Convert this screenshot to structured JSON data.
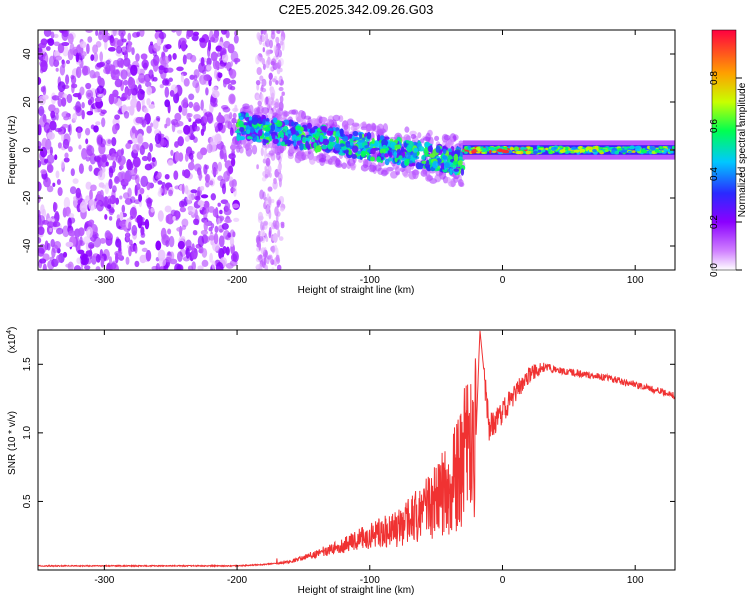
{
  "figure_title": "C2E5.2025.342.09.26.G03",
  "chart_data": [
    {
      "type": "heatmap",
      "xlabel": "Height of straight line (km)",
      "ylabel": "Frequency (Hz)",
      "xlim": [
        -350,
        130
      ],
      "ylim": [
        -50,
        50
      ],
      "xticks": [
        -300,
        -200,
        -100,
        0,
        100
      ],
      "yticks": [
        -40,
        -20,
        0,
        20,
        40
      ],
      "colorbar": {
        "label": "Normalized spectral amplitude",
        "range": [
          0,
          1
        ],
        "ticks": [
          "0.0",
          "0.2",
          "0.4",
          "0.6",
          "0.8"
        ],
        "colormap": "white-purple-blue-cyan-green-yellow-red",
        "stops": [
          "#ffffff",
          "#8b00ff",
          "#2a2aff",
          "#00c8ff",
          "#00ff50",
          "#c8ff00",
          "#ffa000",
          "#ff0040"
        ]
      },
      "regions": [
        {
          "name": "noise",
          "x_range": [
            -350,
            -200
          ],
          "freq_range": [
            -50,
            50
          ],
          "amplitude": 0.15
        },
        {
          "name": "sparse-noise",
          "x_range": [
            -185,
            -165
          ],
          "freq_range": [
            -50,
            50
          ],
          "amplitude": 0.08
        },
        {
          "name": "ridge",
          "x_range": [
            -200,
            -30
          ],
          "center_freq_start": 10,
          "center_freq_end": -5,
          "amplitude": 0.4
        },
        {
          "name": "line",
          "x_range": [
            -30,
            130
          ],
          "center_freq": 0,
          "amplitude": 0.6
        }
      ]
    },
    {
      "type": "line",
      "xlabel": "Height of straight line (km)",
      "ylabel": "SNR (10 * v/v)",
      "exponent_label": "(x10",
      "exponent": "4",
      "exponent_close": ")",
      "xlim": [
        -350,
        130
      ],
      "ylim": [
        0,
        1.75
      ],
      "xticks": [
        -300,
        -200,
        -100,
        0,
        100
      ],
      "yticks": [
        "0.5",
        "1.0",
        "1.5"
      ],
      "color": "#f03232",
      "series": [
        {
          "name": "SNR",
          "x": [
            -350,
            -300,
            -250,
            -200,
            -180,
            -160,
            -140,
            -120,
            -100,
            -80,
            -60,
            -40,
            -30,
            -20,
            -17,
            -10,
            0,
            10,
            20,
            30,
            40,
            60,
            80,
            100,
            120,
            130
          ],
          "y": [
            0.03,
            0.03,
            0.03,
            0.03,
            0.04,
            0.06,
            0.12,
            0.18,
            0.25,
            0.3,
            0.42,
            0.6,
            0.8,
            0.95,
            1.75,
            1.05,
            1.15,
            1.3,
            1.42,
            1.48,
            1.46,
            1.43,
            1.4,
            1.35,
            1.3,
            1.27
          ]
        }
      ]
    }
  ]
}
